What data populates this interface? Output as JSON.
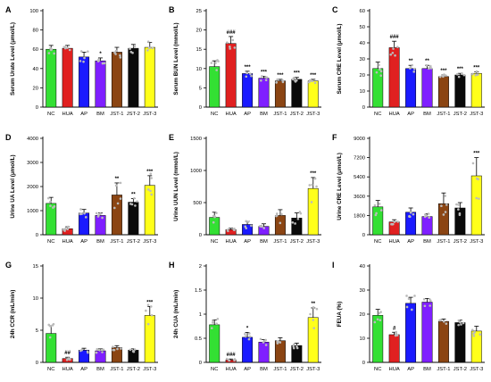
{
  "figure": {
    "categories": [
      "NC",
      "HUA",
      "AP",
      "BM",
      "JST-1",
      "JST-2",
      "JST-3"
    ],
    "group_colors": [
      "#33e033",
      "#e02020",
      "#1a1aff",
      "#7f1fff",
      "#8b4513",
      "#0a0a0a",
      "#ffff1a"
    ],
    "dot_color": "#bbbbbb"
  },
  "chart_data": [
    {
      "type": "bar",
      "letter": "A",
      "ylabel": "Serum Urate Level (μmol/L)",
      "categories": [
        "NC",
        "HUA",
        "AP",
        "BM",
        "JST-1",
        "JST-2",
        "JST-3"
      ],
      "values": [
        60,
        61,
        52,
        48,
        57,
        61,
        62
      ],
      "errors": [
        4,
        3,
        5,
        3,
        5,
        4,
        5
      ],
      "ylim": [
        0,
        100
      ],
      "yticks": [
        0,
        20,
        40,
        60,
        80,
        100
      ],
      "labels": [
        "",
        "",
        "",
        "*",
        "",
        "",
        ""
      ]
    },
    {
      "type": "bar",
      "letter": "B",
      "ylabel": "Serum BUN Level (mmol/L)",
      "categories": [
        "NC",
        "HUA",
        "AP",
        "BM",
        "JST-1",
        "JST-2",
        "JST-3"
      ],
      "values": [
        10.5,
        16.5,
        8.7,
        7.5,
        6.8,
        7.2,
        6.8
      ],
      "errors": [
        1.5,
        1.8,
        0.6,
        0.5,
        0.4,
        0.5,
        0.4
      ],
      "ylim": [
        0,
        25
      ],
      "yticks": [
        0,
        5,
        10,
        15,
        20,
        25
      ],
      "labels": [
        "",
        "###",
        "***",
        "***",
        "***",
        "***",
        "***"
      ]
    },
    {
      "type": "bar",
      "letter": "C",
      "ylabel": "Serum CRE Level (μmol/L)",
      "categories": [
        "NC",
        "HUA",
        "AP",
        "BM",
        "JST-1",
        "JST-2",
        "JST-3"
      ],
      "values": [
        24,
        37,
        24,
        24,
        19,
        20,
        21
      ],
      "errors": [
        4,
        4,
        2,
        2,
        1,
        1,
        1
      ],
      "ylim": [
        0,
        60
      ],
      "yticks": [
        0,
        10,
        20,
        30,
        40,
        50,
        60
      ],
      "labels": [
        "",
        "###",
        "**",
        "**",
        "***",
        "***",
        "***"
      ]
    },
    {
      "type": "bar",
      "letter": "D",
      "ylabel": "Urine UA Level (μmol/L)",
      "categories": [
        "NC",
        "HUA",
        "AP",
        "BM",
        "JST-1",
        "JST-2",
        "JST-3"
      ],
      "values": [
        1300,
        250,
        900,
        800,
        1650,
        1350,
        2050
      ],
      "errors": [
        250,
        80,
        150,
        100,
        500,
        150,
        400
      ],
      "ylim": [
        0,
        4000
      ],
      "yticks": [
        0,
        1000,
        2000,
        3000,
        4000
      ],
      "labels": [
        "",
        "",
        "",
        "",
        "**",
        "**",
        "***"
      ]
    },
    {
      "type": "bar",
      "letter": "E",
      "ylabel": "Urine UUN Level (mmol/L)",
      "categories": [
        "NC",
        "HUA",
        "AP",
        "BM",
        "JST-1",
        "JST-2",
        "JST-3"
      ],
      "values": [
        270,
        80,
        160,
        130,
        300,
        260,
        720
      ],
      "errors": [
        80,
        20,
        50,
        40,
        90,
        80,
        170
      ],
      "ylim": [
        0,
        1500
      ],
      "yticks": [
        0,
        500,
        1000,
        1500
      ],
      "labels": [
        "",
        "",
        "",
        "",
        "",
        "",
        "***"
      ]
    },
    {
      "type": "bar",
      "letter": "F",
      "ylabel": "Urine CRE Level (μmol/L)",
      "categories": [
        "NC",
        "HUA",
        "AP",
        "BM",
        "JST-1",
        "JST-2",
        "JST-3"
      ],
      "values": [
        2600,
        1200,
        2100,
        1700,
        2900,
        2500,
        5500
      ],
      "errors": [
        600,
        200,
        400,
        250,
        1000,
        500,
        1700
      ],
      "ylim": [
        0,
        9000
      ],
      "yticks": [
        0,
        1800,
        3600,
        5400,
        7200,
        9000
      ],
      "labels": [
        "",
        "",
        "",
        "",
        "",
        "",
        "***"
      ]
    },
    {
      "type": "bar",
      "letter": "G",
      "ylabel": "24h CCR (mL/min)",
      "categories": [
        "NC",
        "HUA",
        "AP",
        "BM",
        "JST-1",
        "JST-2",
        "JST-3"
      ],
      "values": [
        4.5,
        0.6,
        1.9,
        1.8,
        2.3,
        1.9,
        7.3
      ],
      "errors": [
        1.2,
        0.2,
        0.3,
        0.3,
        0.3,
        0.2,
        1.4
      ],
      "ylim": [
        0,
        15
      ],
      "yticks": [
        0,
        5,
        10,
        15
      ],
      "labels": [
        "",
        "##",
        "",
        "",
        "",
        "",
        "***"
      ]
    },
    {
      "type": "bar",
      "letter": "H",
      "ylabel": "24h CUA (mL/min)",
      "categories": [
        "NC",
        "HUA",
        "AP",
        "BM",
        "JST-1",
        "JST-2",
        "JST-3"
      ],
      "values": [
        0.78,
        0.05,
        0.52,
        0.42,
        0.45,
        0.35,
        0.93
      ],
      "errors": [
        0.1,
        0.02,
        0.1,
        0.05,
        0.06,
        0.05,
        0.2
      ],
      "ylim": [
        0,
        2.0
      ],
      "yticks": [
        0,
        0.5,
        1.0,
        1.5,
        2.0
      ],
      "labels": [
        "",
        "###",
        "*",
        "",
        "",
        "",
        "**"
      ]
    },
    {
      "type": "bar",
      "letter": "I",
      "ylabel": "FEUA (%)",
      "categories": [
        "NC",
        "HUA",
        "AP",
        "BM",
        "JST-1",
        "JST-2",
        "JST-3"
      ],
      "values": [
        19.5,
        11.5,
        24.5,
        25,
        17,
        16.5,
        13
      ],
      "errors": [
        2.5,
        1,
        2.5,
        1.5,
        1,
        1,
        2
      ],
      "ylim": [
        0,
        40
      ],
      "yticks": [
        0,
        10,
        20,
        30,
        40
      ],
      "labels": [
        "",
        "#",
        "",
        "",
        "",
        "",
        ""
      ]
    }
  ]
}
